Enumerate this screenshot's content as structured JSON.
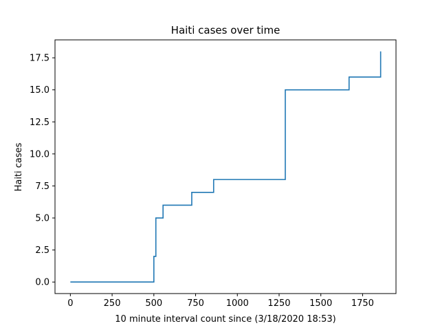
{
  "chart_data": {
    "type": "line",
    "title": "Haiti cases over time",
    "xlabel": "10 minute interval count since (3/18/2020 18:53)",
    "ylabel": "Haiti cases",
    "xlim": [
      -92,
      1950
    ],
    "ylim": [
      -0.9,
      18.9
    ],
    "xticks": [
      0,
      250,
      500,
      750,
      1000,
      1250,
      1500,
      1750
    ],
    "xtick_labels": [
      "0",
      "250",
      "500",
      "750",
      "1000",
      "1250",
      "1500",
      "1750"
    ],
    "yticks": [
      0,
      2.5,
      5,
      7.5,
      10,
      12.5,
      15,
      17.5
    ],
    "ytick_labels": [
      "0.0",
      "2.5",
      "5.0",
      "7.5",
      "10.0",
      "12.5",
      "15.0",
      "17.5"
    ],
    "grid": false,
    "legend": "none",
    "series": [
      {
        "color": "#1f77b4",
        "step": "post",
        "x": [
          0,
          500,
          512,
          522,
          555,
          727,
          858,
          1287,
          1669,
          1858
        ],
        "y": [
          0,
          2,
          5,
          5,
          6,
          7,
          8,
          15,
          16,
          18
        ]
      }
    ]
  }
}
